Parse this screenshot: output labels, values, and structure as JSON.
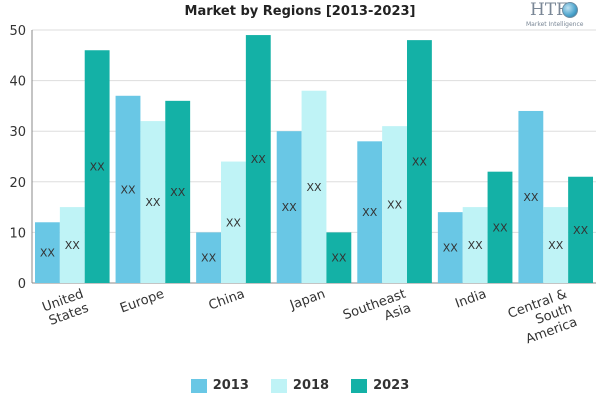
{
  "chart_data": {
    "type": "bar",
    "title": "Market by Regions [2013-2023]",
    "categories": [
      [
        "United",
        "States"
      ],
      [
        "Europe"
      ],
      [
        "China"
      ],
      [
        "Japan"
      ],
      [
        "Southeast",
        "Asia"
      ],
      [
        "India"
      ],
      [
        "Central &",
        "South",
        "America"
      ]
    ],
    "series": [
      {
        "name": "2013",
        "color": "#69c7e5",
        "values": [
          12,
          37,
          10,
          30,
          28,
          14,
          34
        ],
        "labels": [
          "xx",
          "xx",
          "xx",
          "xx",
          "xx",
          "xx",
          "xx"
        ]
      },
      {
        "name": "2018",
        "color": "#bff3f6",
        "values": [
          15,
          32,
          24,
          38,
          31,
          15,
          15
        ],
        "labels": [
          "xx",
          "xx",
          "xx",
          "xx",
          "xx",
          "xx",
          "xx"
        ]
      },
      {
        "name": "2023",
        "color": "#14b1a6",
        "values": [
          46,
          36,
          49,
          10,
          48,
          22,
          21
        ],
        "labels": [
          "xx",
          "xx",
          "xx",
          "xx",
          "xx",
          "xx",
          "xx"
        ]
      }
    ],
    "ylim": [
      0,
      50
    ],
    "yticks": [
      0,
      10,
      20,
      30,
      40,
      50
    ],
    "grid": true,
    "legend_position": "bottom"
  },
  "logo": {
    "mark": "HTF",
    "subtitle": "Market Intelligence"
  }
}
